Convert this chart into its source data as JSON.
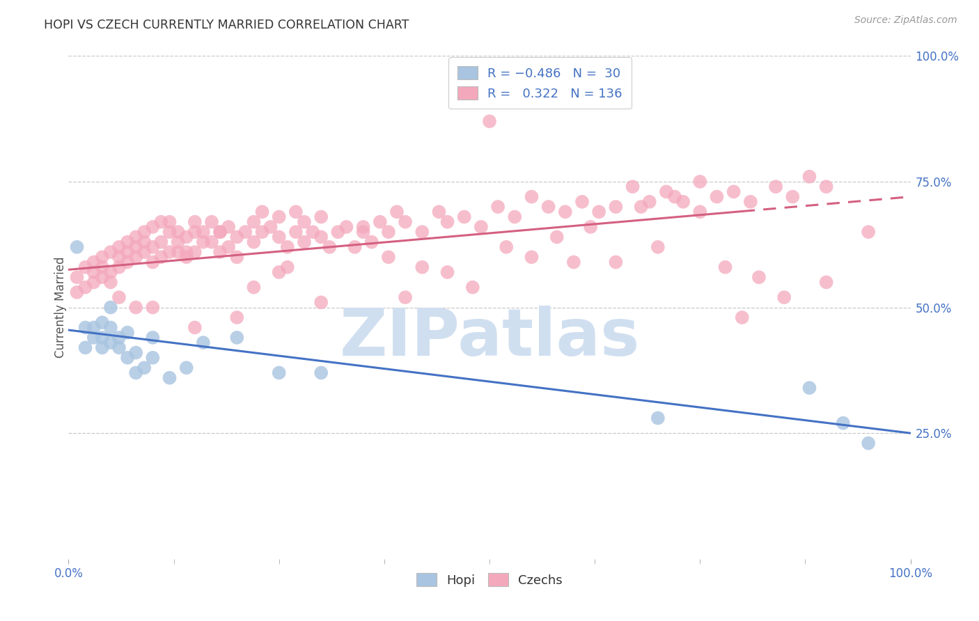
{
  "title": "HOPI VS CZECH CURRENTLY MARRIED CORRELATION CHART",
  "source": "Source: ZipAtlas.com",
  "ylabel": "Currently Married",
  "right_yticks": [
    "100.0%",
    "75.0%",
    "50.0%",
    "25.0%"
  ],
  "right_ytick_vals": [
    1.0,
    0.75,
    0.5,
    0.25
  ],
  "hopi_color": "#a8c4e0",
  "czech_color": "#f4a8bc",
  "hopi_line_color": "#4472c4",
  "czech_line_color": "#d46080",
  "watermark_color": "#d0dff0",
  "background_color": "#ffffff",
  "grid_color": "#c8c8c8",
  "xlim": [
    0.0,
    1.0
  ],
  "ylim": [
    0.0,
    1.0
  ],
  "hopi_trend_x0": 0.0,
  "hopi_trend_y0": 0.455,
  "hopi_trend_x1": 1.0,
  "hopi_trend_y1": 0.25,
  "czech_trend_x0": 0.0,
  "czech_trend_y0": 0.575,
  "czech_trend_x1": 1.0,
  "czech_trend_y1": 0.72,
  "czech_dash_split": 0.8,
  "hopi_scatter_x": [
    0.01,
    0.02,
    0.02,
    0.03,
    0.03,
    0.04,
    0.04,
    0.04,
    0.05,
    0.05,
    0.05,
    0.06,
    0.06,
    0.07,
    0.07,
    0.08,
    0.08,
    0.09,
    0.1,
    0.1,
    0.12,
    0.14,
    0.16,
    0.2,
    0.25,
    0.3,
    0.7,
    0.88,
    0.92,
    0.95
  ],
  "hopi_scatter_y": [
    0.62,
    0.46,
    0.42,
    0.44,
    0.46,
    0.44,
    0.47,
    0.42,
    0.43,
    0.46,
    0.5,
    0.44,
    0.42,
    0.4,
    0.45,
    0.37,
    0.41,
    0.38,
    0.44,
    0.4,
    0.36,
    0.38,
    0.43,
    0.44,
    0.37,
    0.37,
    0.28,
    0.34,
    0.27,
    0.23
  ],
  "czech_scatter_x": [
    0.01,
    0.01,
    0.02,
    0.02,
    0.03,
    0.03,
    0.03,
    0.04,
    0.04,
    0.04,
    0.05,
    0.05,
    0.05,
    0.06,
    0.06,
    0.06,
    0.07,
    0.07,
    0.07,
    0.08,
    0.08,
    0.08,
    0.09,
    0.09,
    0.09,
    0.1,
    0.1,
    0.1,
    0.11,
    0.11,
    0.11,
    0.12,
    0.12,
    0.12,
    0.13,
    0.13,
    0.13,
    0.14,
    0.14,
    0.15,
    0.15,
    0.15,
    0.16,
    0.16,
    0.17,
    0.17,
    0.18,
    0.18,
    0.19,
    0.19,
    0.2,
    0.2,
    0.21,
    0.22,
    0.22,
    0.23,
    0.23,
    0.24,
    0.25,
    0.25,
    0.26,
    0.27,
    0.27,
    0.28,
    0.28,
    0.29,
    0.3,
    0.3,
    0.31,
    0.32,
    0.33,
    0.34,
    0.35,
    0.36,
    0.37,
    0.38,
    0.39,
    0.4,
    0.42,
    0.44,
    0.45,
    0.47,
    0.49,
    0.51,
    0.53,
    0.55,
    0.57,
    0.59,
    0.61,
    0.63,
    0.65,
    0.67,
    0.69,
    0.71,
    0.73,
    0.75,
    0.77,
    0.79,
    0.81,
    0.84,
    0.86,
    0.88,
    0.9,
    0.1,
    0.5,
    0.6,
    0.35,
    0.4,
    0.2,
    0.7,
    0.25,
    0.15,
    0.8,
    0.45,
    0.55,
    0.3,
    0.65,
    0.75,
    0.85,
    0.9,
    0.95,
    0.38,
    0.48,
    0.58,
    0.68,
    0.78,
    0.42,
    0.52,
    0.62,
    0.72,
    0.82,
    0.06,
    0.08,
    0.14,
    0.18,
    0.22,
    0.26
  ],
  "czech_scatter_y": [
    0.56,
    0.53,
    0.58,
    0.54,
    0.59,
    0.55,
    0.57,
    0.6,
    0.56,
    0.58,
    0.61,
    0.57,
    0.55,
    0.62,
    0.58,
    0.6,
    0.63,
    0.59,
    0.61,
    0.64,
    0.6,
    0.62,
    0.65,
    0.61,
    0.63,
    0.59,
    0.66,
    0.62,
    0.6,
    0.67,
    0.63,
    0.65,
    0.61,
    0.67,
    0.63,
    0.65,
    0.61,
    0.64,
    0.6,
    0.65,
    0.61,
    0.67,
    0.63,
    0.65,
    0.67,
    0.63,
    0.65,
    0.61,
    0.66,
    0.62,
    0.64,
    0.6,
    0.65,
    0.63,
    0.67,
    0.65,
    0.69,
    0.66,
    0.64,
    0.68,
    0.62,
    0.65,
    0.69,
    0.63,
    0.67,
    0.65,
    0.64,
    0.68,
    0.62,
    0.65,
    0.66,
    0.62,
    0.65,
    0.63,
    0.67,
    0.65,
    0.69,
    0.67,
    0.65,
    0.69,
    0.67,
    0.68,
    0.66,
    0.7,
    0.68,
    0.72,
    0.7,
    0.69,
    0.71,
    0.69,
    0.7,
    0.74,
    0.71,
    0.73,
    0.71,
    0.75,
    0.72,
    0.73,
    0.71,
    0.74,
    0.72,
    0.76,
    0.74,
    0.5,
    0.87,
    0.59,
    0.66,
    0.52,
    0.48,
    0.62,
    0.57,
    0.46,
    0.48,
    0.57,
    0.6,
    0.51,
    0.59,
    0.69,
    0.52,
    0.55,
    0.65,
    0.6,
    0.54,
    0.64,
    0.7,
    0.58,
    0.58,
    0.62,
    0.66,
    0.72,
    0.56,
    0.52,
    0.5,
    0.61,
    0.65,
    0.54,
    0.58
  ]
}
